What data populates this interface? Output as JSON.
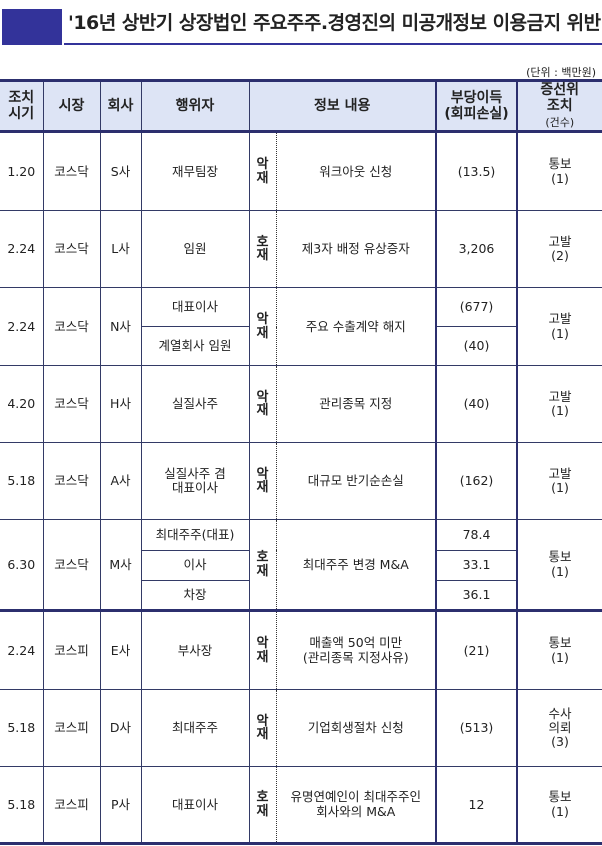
{
  "title": "'16년 상반기 상장법인 주요주주.경영진의 미공개정보 이용금지 위반",
  "unit": "(단위 : 백만원)",
  "headers": {
    "date": "조치\n시기",
    "market": "시장",
    "company": "회사",
    "actor": "행위자",
    "info": "정보 내용",
    "gain": "부당이득",
    "gain_sub": "(회피손실)",
    "action": "증선위\n조치",
    "action_sub": "(건수)"
  },
  "rows": [
    {
      "date": "1.20",
      "market": "코스닥",
      "company": "S사",
      "actors": [
        "재무팀장"
      ],
      "type": "악\n재",
      "info": "워크아웃 신청",
      "gains": [
        "(13.5)"
      ],
      "action": "통보\n(1)"
    },
    {
      "date": "2.24",
      "market": "코스닥",
      "company": "L사",
      "actors": [
        "임원"
      ],
      "type": "호\n재",
      "info": "제3자 배정 유상증자",
      "gains": [
        "3,206"
      ],
      "action": "고발\n(2)"
    },
    {
      "date": "2.24",
      "market": "코스닥",
      "company": "N사",
      "actors": [
        "대표이사",
        "계열회사 임원"
      ],
      "type": "악\n재",
      "info": "주요 수출계약 해지",
      "gains": [
        "(677)",
        "(40)"
      ],
      "action": "고발\n(1)"
    },
    {
      "date": "4.20",
      "market": "코스닥",
      "company": "H사",
      "actors": [
        "실질사주"
      ],
      "type": "악\n재",
      "info": "관리종목 지정",
      "gains": [
        "(40)"
      ],
      "action": "고발\n(1)"
    },
    {
      "date": "5.18",
      "market": "코스닥",
      "company": "A사",
      "actors": [
        "실질사주 겸\n대표이사"
      ],
      "type": "악\n재",
      "info": "대규모 반기순손실",
      "gains": [
        "(162)"
      ],
      "action": "고발\n(1)"
    },
    {
      "date": "6.30",
      "market": "코스닥",
      "company": "M사",
      "actors": [
        "최대주주(대표)",
        "이사",
        "차장"
      ],
      "type": "호\n재",
      "info": "최대주주 변경 M&A",
      "gains": [
        "78.4",
        "33.1",
        "36.1"
      ],
      "action": "통보\n(1)"
    },
    {
      "date": "2.24",
      "market": "코스피",
      "company": "E사",
      "actors": [
        "부사장"
      ],
      "type": "악\n재",
      "info": "매출액 50억 미만\n(관리종목 지정사유)",
      "gains": [
        "(21)"
      ],
      "action": "통보\n(1)"
    },
    {
      "date": "5.18",
      "market": "코스피",
      "company": "D사",
      "actors": [
        "최대주주"
      ],
      "type": "악\n재",
      "info": "기업회생절차 신청",
      "gains": [
        "(513)"
      ],
      "action": "수사\n의뢰\n(3)"
    },
    {
      "date": "5.18",
      "market": "코스피",
      "company": "P사",
      "actors": [
        "대표이사"
      ],
      "type": "호\n재",
      "info": "유명연예인이 최대주주인\n회사와의 M&A",
      "gains": [
        "12"
      ],
      "action": "통보\n(1)"
    }
  ]
}
